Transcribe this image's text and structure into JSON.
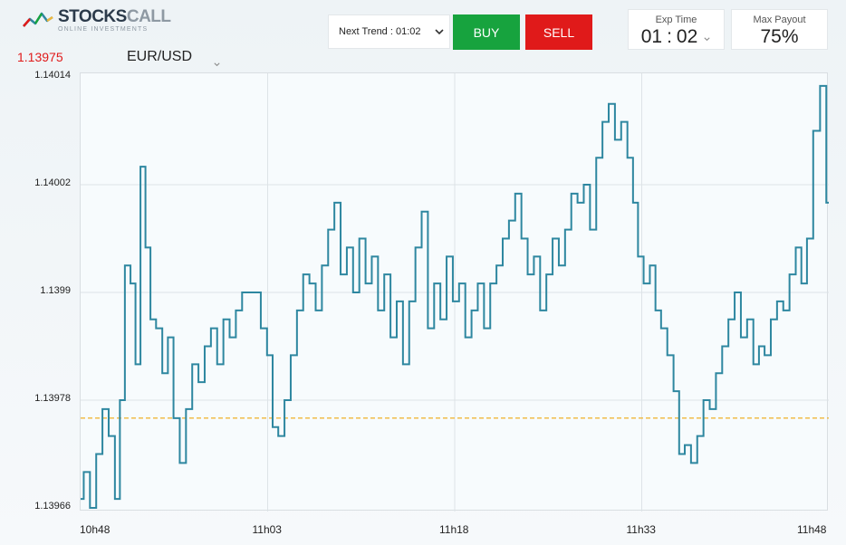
{
  "logo": {
    "name_main": "STOCKS",
    "name_light": "CALL",
    "tagline": "ONLINE INVESTMENTS"
  },
  "controls": {
    "trend_label": "Next Trend : 01:02",
    "buy_label": "BUY",
    "sell_label": "SELL",
    "exp_time": {
      "label": "Exp Time",
      "minutes": "01",
      "separator": ":",
      "seconds": "02"
    },
    "max_payout": {
      "label": "Max Payout",
      "value": "75%"
    }
  },
  "header": {
    "current_price": "1.13975",
    "pair": "EUR/USD"
  },
  "colors": {
    "line": "#2e87a0",
    "reference": "#f0b73a",
    "buy": "#17a33e",
    "sell": "#e01a1a",
    "price": "#e01a1a"
  },
  "icons": {
    "logo": "chart-line-logo-icon",
    "dropdown": "chevron-down-icon"
  },
  "chart_data": {
    "type": "line",
    "title": "",
    "xlabel": "",
    "ylabel": "",
    "y_ticks": [
      "1.13966",
      "1.13978",
      "1.1399",
      "1.14002",
      "1.14014"
    ],
    "x_ticks": [
      "10h48",
      "11h03",
      "11h18",
      "11h33",
      "11h48"
    ],
    "ylim": [
      1.13966,
      1.14014
    ],
    "xlim": [
      0,
      60
    ],
    "reference_line": 1.13976,
    "grid": true,
    "series": [
      {
        "values": [
          [
            0,
            1.13967
          ],
          [
            0.5,
            1.1397
          ],
          [
            1,
            1.13966
          ],
          [
            1.5,
            1.13972
          ],
          [
            2,
            1.13977
          ],
          [
            2.5,
            1.13974
          ],
          [
            3,
            1.13967
          ],
          [
            3.3,
            1.13978
          ],
          [
            3.8,
            1.13993
          ],
          [
            4.2,
            1.13991
          ],
          [
            4.6,
            1.13982
          ],
          [
            5,
            1.14004
          ],
          [
            5.4,
            1.13995
          ],
          [
            5.8,
            1.13987
          ],
          [
            6.3,
            1.13986
          ],
          [
            6.8,
            1.13981
          ],
          [
            7.2,
            1.13985
          ],
          [
            7.7,
            1.13976
          ],
          [
            8.2,
            1.13971
          ],
          [
            8.7,
            1.13977
          ],
          [
            9.2,
            1.13982
          ],
          [
            9.7,
            1.1398
          ],
          [
            10.2,
            1.13984
          ],
          [
            10.7,
            1.13986
          ],
          [
            11.2,
            1.13982
          ],
          [
            11.7,
            1.13987
          ],
          [
            12.2,
            1.13985
          ],
          [
            12.7,
            1.13988
          ],
          [
            13.2,
            1.1399
          ],
          [
            13.7,
            1.1399
          ],
          [
            14.2,
            1.1399
          ],
          [
            14.7,
            1.13986
          ],
          [
            15.2,
            1.13983
          ],
          [
            15.6,
            1.13975
          ],
          [
            16.1,
            1.13974
          ],
          [
            16.6,
            1.13978
          ],
          [
            17.1,
            1.13983
          ],
          [
            17.6,
            1.13988
          ],
          [
            18.1,
            1.13992
          ],
          [
            18.6,
            1.13991
          ],
          [
            19.1,
            1.13988
          ],
          [
            19.6,
            1.13993
          ],
          [
            20.1,
            1.13997
          ],
          [
            20.6,
            1.14
          ],
          [
            21.1,
            1.13992
          ],
          [
            21.6,
            1.13995
          ],
          [
            22.1,
            1.1399
          ],
          [
            22.6,
            1.13996
          ],
          [
            23.1,
            1.13991
          ],
          [
            23.6,
            1.13994
          ],
          [
            24.1,
            1.13988
          ],
          [
            24.6,
            1.13992
          ],
          [
            25.1,
            1.13985
          ],
          [
            25.6,
            1.13989
          ],
          [
            26.1,
            1.13982
          ],
          [
            26.6,
            1.13989
          ],
          [
            27.1,
            1.13995
          ],
          [
            27.6,
            1.13999
          ],
          [
            28.1,
            1.13986
          ],
          [
            28.6,
            1.13991
          ],
          [
            29.1,
            1.13987
          ],
          [
            29.6,
            1.13994
          ],
          [
            30.1,
            1.13989
          ],
          [
            30.6,
            1.13991
          ],
          [
            31.1,
            1.13985
          ],
          [
            31.6,
            1.13988
          ],
          [
            32.1,
            1.13991
          ],
          [
            32.6,
            1.13986
          ],
          [
            33.1,
            1.13991
          ],
          [
            33.6,
            1.13993
          ],
          [
            34.1,
            1.13996
          ],
          [
            34.6,
            1.13998
          ],
          [
            35.1,
            1.14001
          ],
          [
            35.6,
            1.13996
          ],
          [
            36.1,
            1.13992
          ],
          [
            36.6,
            1.13994
          ],
          [
            37.1,
            1.13988
          ],
          [
            37.6,
            1.13992
          ],
          [
            38.1,
            1.13996
          ],
          [
            38.6,
            1.13993
          ],
          [
            39.1,
            1.13997
          ],
          [
            39.6,
            1.14001
          ],
          [
            40.1,
            1.14
          ],
          [
            40.6,
            1.14002
          ],
          [
            41.1,
            1.13997
          ],
          [
            41.6,
            1.14005
          ],
          [
            42.1,
            1.14009
          ],
          [
            42.6,
            1.14011
          ],
          [
            43.1,
            1.14007
          ],
          [
            43.6,
            1.14009
          ],
          [
            44.1,
            1.14005
          ],
          [
            44.5,
            1.14
          ],
          [
            44.9,
            1.13994
          ],
          [
            45.4,
            1.13991
          ],
          [
            45.9,
            1.13993
          ],
          [
            46.3,
            1.13988
          ],
          [
            46.8,
            1.13986
          ],
          [
            47.3,
            1.13983
          ],
          [
            47.8,
            1.13979
          ],
          [
            48.2,
            1.13972
          ],
          [
            48.7,
            1.13973
          ],
          [
            49.2,
            1.13971
          ],
          [
            49.7,
            1.13974
          ],
          [
            50.2,
            1.13978
          ],
          [
            50.7,
            1.13977
          ],
          [
            51.2,
            1.13981
          ],
          [
            51.7,
            1.13984
          ],
          [
            52.2,
            1.13987
          ],
          [
            52.7,
            1.1399
          ],
          [
            53.2,
            1.13985
          ],
          [
            53.7,
            1.13987
          ],
          [
            54.2,
            1.13982
          ],
          [
            54.6,
            1.13984
          ],
          [
            55.1,
            1.13983
          ],
          [
            55.6,
            1.13987
          ],
          [
            56.1,
            1.13989
          ],
          [
            56.6,
            1.13988
          ],
          [
            57.1,
            1.13992
          ],
          [
            57.6,
            1.13995
          ],
          [
            58.0,
            1.13991
          ],
          [
            58.5,
            1.13996
          ],
          [
            59.0,
            1.14008
          ],
          [
            59.6,
            1.14013
          ],
          [
            60,
            1.14
          ]
        ]
      }
    ]
  }
}
